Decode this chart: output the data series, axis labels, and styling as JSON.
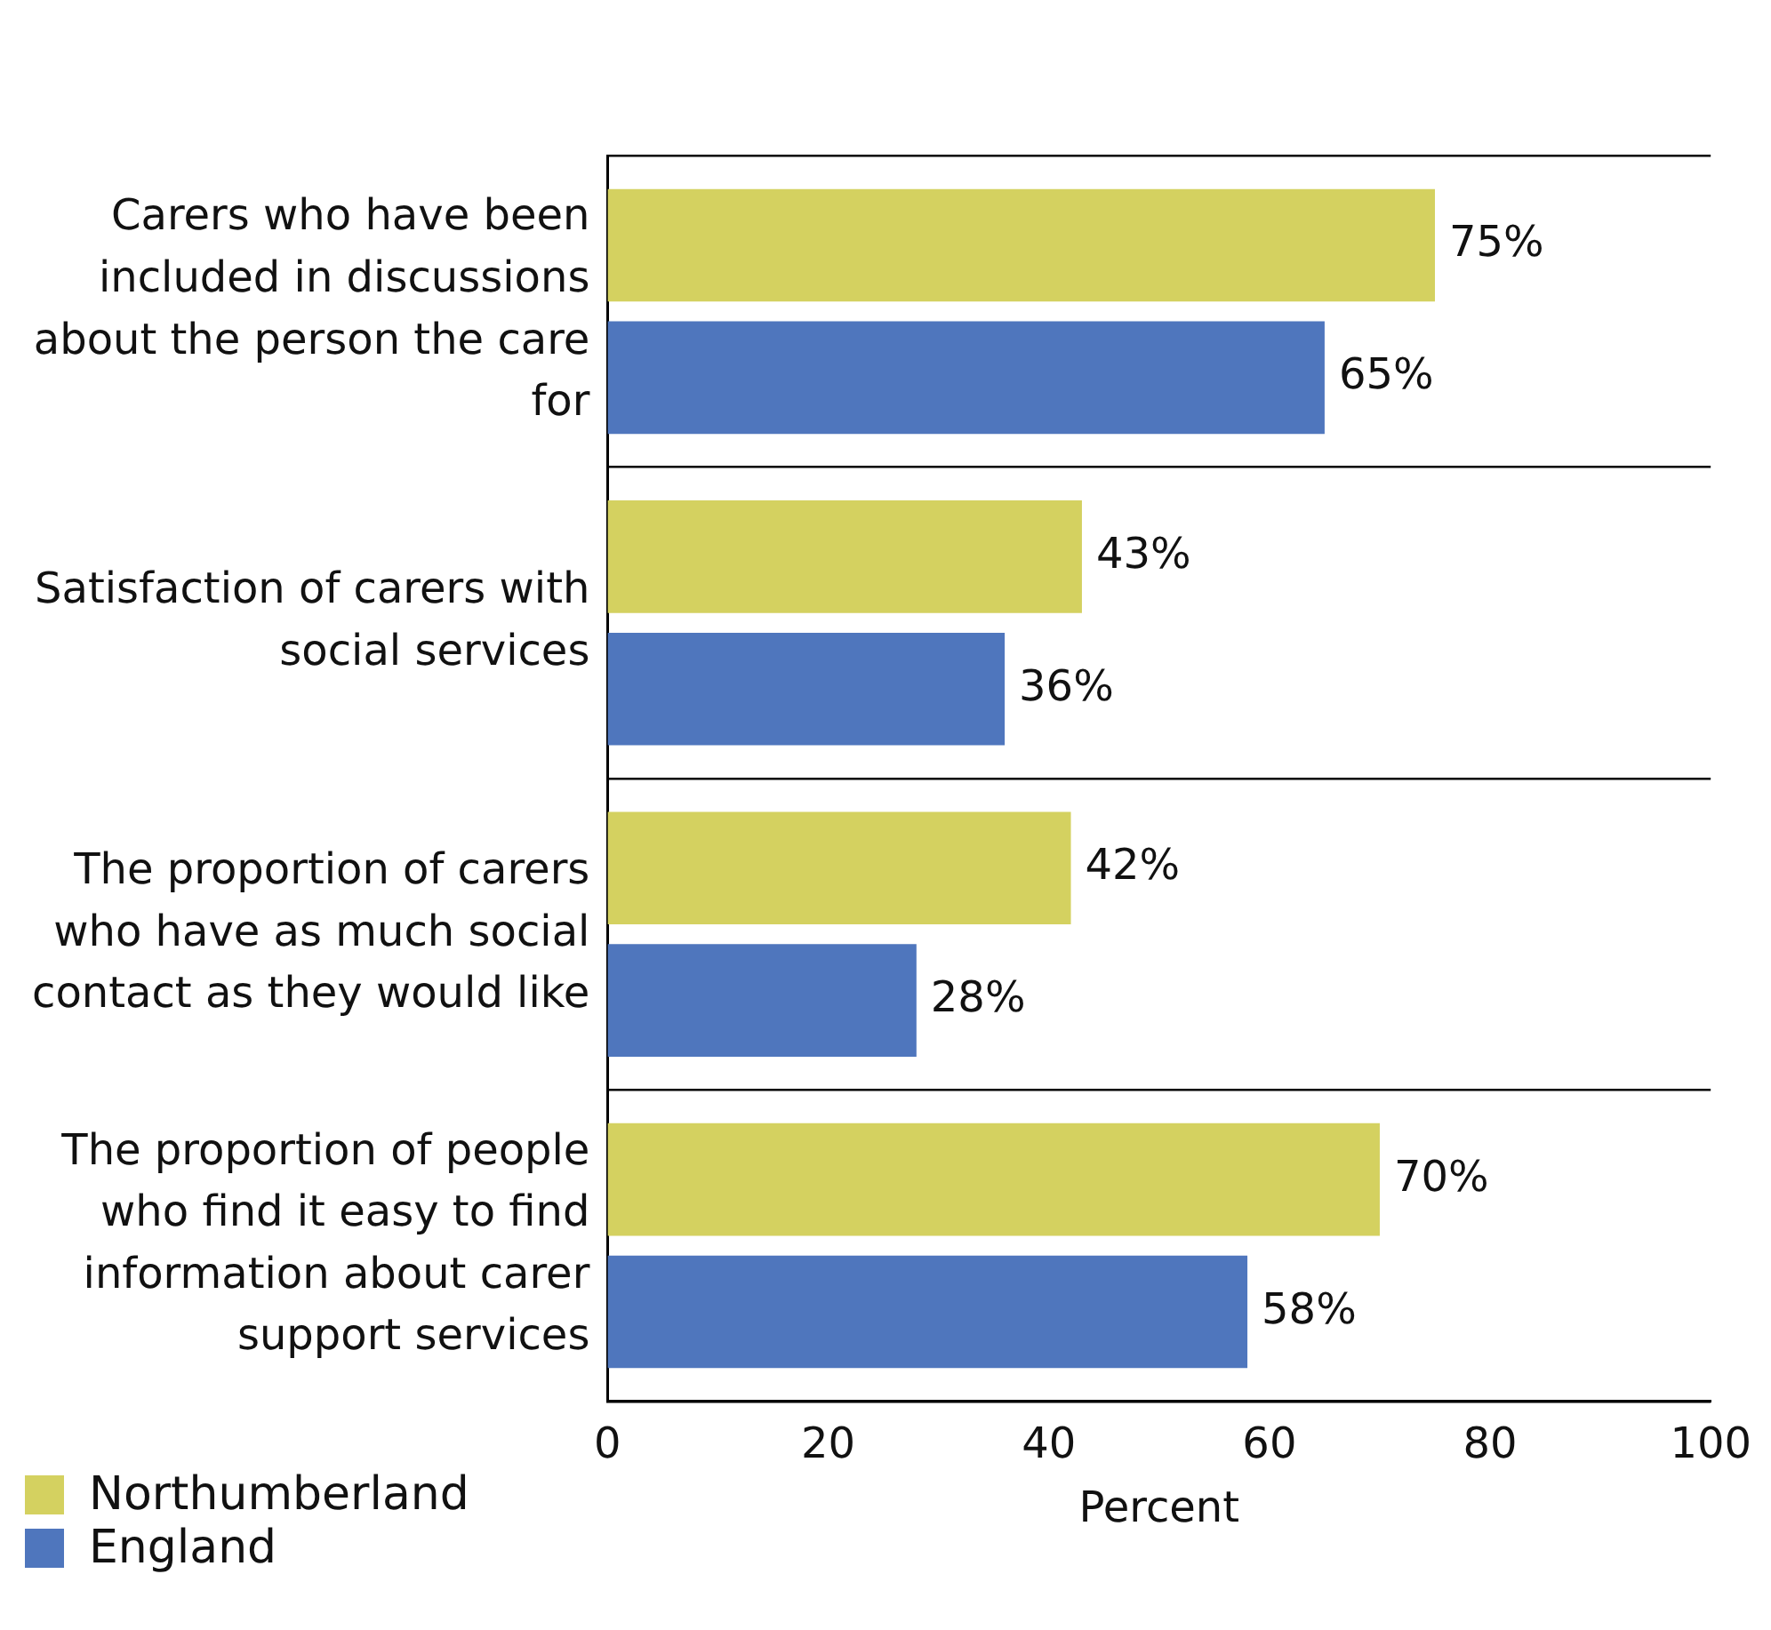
{
  "chart_data": {
    "type": "bar",
    "orientation": "horizontal",
    "xlabel": "Percent",
    "categories": [
      "Carers who have been included in discussions about the person the care for",
      "Satisfaction of carers with social services",
      "The proportion of carers who have as much social contact as they would like",
      "The proportion of people who find it easy to find information about carer support services"
    ],
    "series": [
      {
        "name": "Northumberland",
        "color": "#d4d160",
        "values": [
          75,
          43,
          42,
          70
        ],
        "value_labels": [
          "75%",
          "43%",
          "42%",
          "70%"
        ]
      },
      {
        "name": "England",
        "color": "#4f76bd",
        "values": [
          65,
          36,
          28,
          58
        ],
        "value_labels": [
          "65%",
          "36%",
          "28%",
          "58%"
        ]
      }
    ],
    "xlim": [
      0,
      100
    ],
    "xticks": [
      0,
      20,
      40,
      60,
      80,
      100
    ],
    "legend": "bottom left"
  }
}
